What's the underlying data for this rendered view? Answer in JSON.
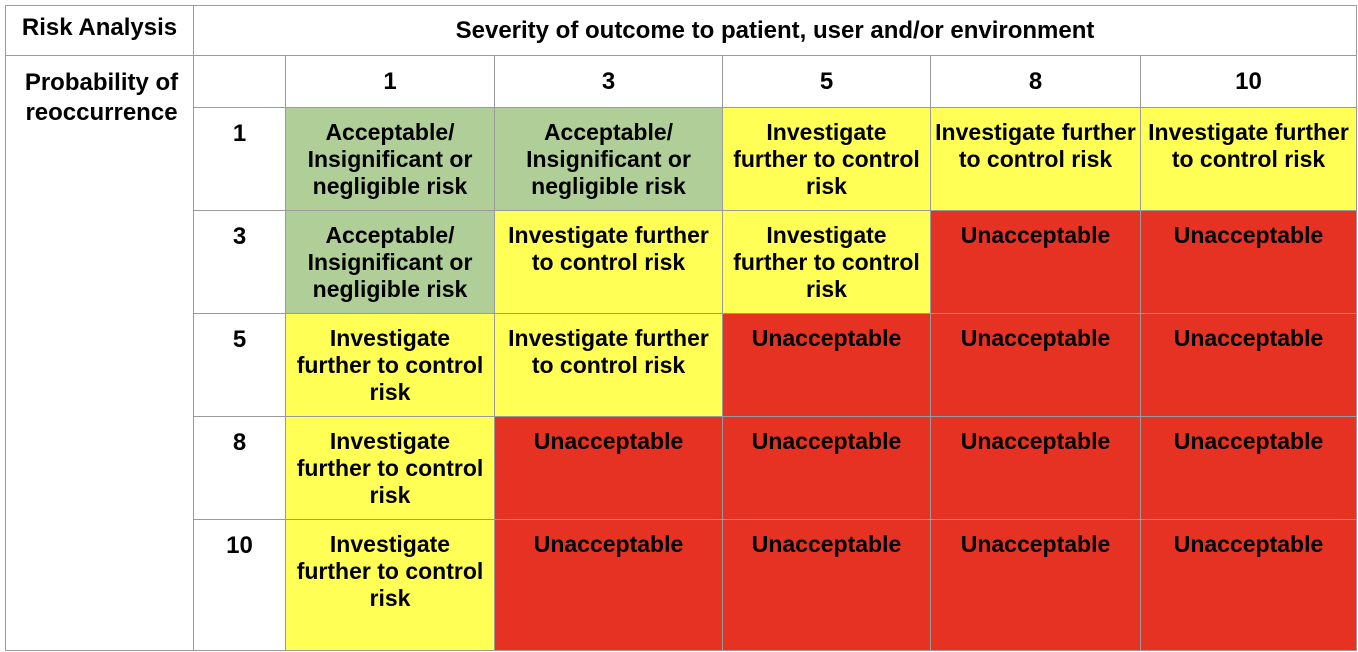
{
  "corner_label": "Risk Analysis",
  "severity_header": "Severity of outcome to patient, user and/or environment",
  "probability_label": "Probability of reoccurrence",
  "severity_levels": [
    "1",
    "3",
    "5",
    "8",
    "10"
  ],
  "probability_levels": [
    "1",
    "3",
    "5",
    "8",
    "10"
  ],
  "legend": {
    "acceptable": "Acceptable/ Insignificant or negligible risk",
    "investigate": "Investigate further to control risk",
    "unacceptable": "Unacceptable"
  },
  "colors": {
    "acceptable": "#b0cf98",
    "investigate": "#ffff56",
    "unacceptable": "#e63223"
  },
  "rows": [
    {
      "probability": "1",
      "cells": [
        {
          "level": "acceptable",
          "text": "Acceptable/ Insignificant or negligible risk"
        },
        {
          "level": "acceptable",
          "text": "Acceptable/ Insignificant or negligible risk"
        },
        {
          "level": "investigate",
          "text": "Investigate further to control risk"
        },
        {
          "level": "investigate",
          "text": "Investigate further to control risk"
        },
        {
          "level": "investigate",
          "text": "Investigate further to control risk"
        }
      ]
    },
    {
      "probability": "3",
      "cells": [
        {
          "level": "acceptable",
          "text": "Acceptable/ Insignificant or negligible risk"
        },
        {
          "level": "investigate",
          "text": "Investigate further to control risk"
        },
        {
          "level": "investigate",
          "text": "Investigate further to control risk"
        },
        {
          "level": "unacceptable",
          "text": "Unacceptable"
        },
        {
          "level": "unacceptable",
          "text": "Unacceptable"
        }
      ]
    },
    {
      "probability": "5",
      "cells": [
        {
          "level": "investigate",
          "text": "Investigate further to control risk"
        },
        {
          "level": "investigate",
          "text": "Investigate further to control risk"
        },
        {
          "level": "unacceptable",
          "text": "Unacceptable"
        },
        {
          "level": "unacceptable",
          "text": "Unacceptable"
        },
        {
          "level": "unacceptable",
          "text": "Unacceptable"
        }
      ]
    },
    {
      "probability": "8",
      "cells": [
        {
          "level": "investigate",
          "text": "Investigate further to control risk"
        },
        {
          "level": "unacceptable",
          "text": "Unacceptable"
        },
        {
          "level": "unacceptable",
          "text": "Unacceptable"
        },
        {
          "level": "unacceptable",
          "text": "Unacceptable"
        },
        {
          "level": "unacceptable",
          "text": "Unacceptable"
        }
      ]
    },
    {
      "probability": "10",
      "cells": [
        {
          "level": "investigate",
          "text": "Investigate further to control risk"
        },
        {
          "level": "unacceptable",
          "text": "Unacceptable"
        },
        {
          "level": "unacceptable",
          "text": "Unacceptable"
        },
        {
          "level": "unacceptable",
          "text": "Unacceptable"
        },
        {
          "level": "unacceptable",
          "text": "Unacceptable"
        }
      ]
    }
  ]
}
